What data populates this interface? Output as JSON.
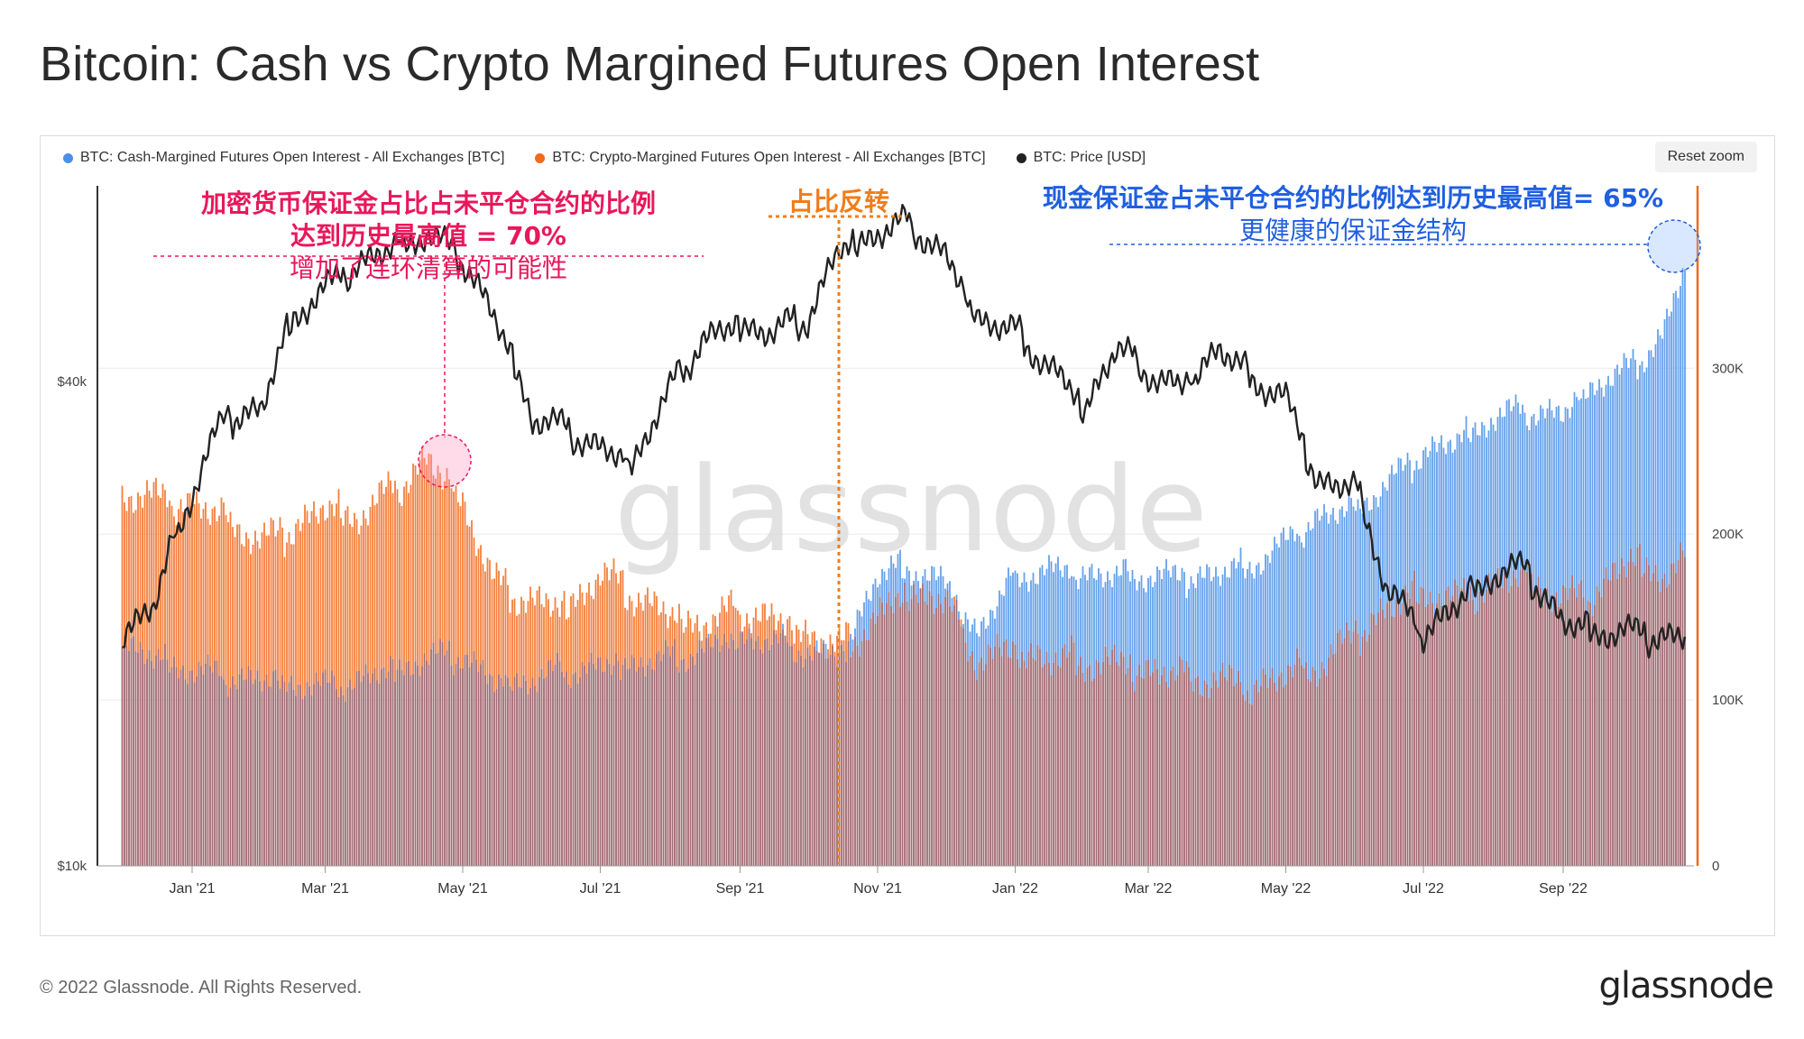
{
  "title": "Bitcoin: Cash vs Crypto Margined Futures Open Interest",
  "reset_zoom_label": "Reset zoom",
  "footer": "© 2022 Glassnode. All Rights Reserved.",
  "brand": "glassnode",
  "watermark": "glassnode",
  "colors": {
    "cash": "#4a90e8",
    "crypto": "#f26a1b",
    "overlap": "#a06a70",
    "price": "#222222",
    "pink": "#e8185c",
    "orange": "#ef7d1a",
    "blue": "#1f5fe0"
  },
  "annotations": {
    "left": {
      "line1": "加密货币保证金占比占未平仓合约的比例",
      "line2": "达到历史最高值 = 70%",
      "line3": "增加了连环清算的可能性"
    },
    "mid": {
      "line1": "占比反转"
    },
    "right": {
      "line1": "现金保证金占未平仓合约的比例达到历史最高值= 65%",
      "line2": "更健康的保证金结构"
    }
  },
  "chart_data": {
    "type": "bar",
    "title": "Bitcoin: Cash vs Crypto Margined Futures Open Interest",
    "x_tick_labels": [
      "Jan '21",
      "Mar '21",
      "May '21",
      "Jul '21",
      "Sep '21",
      "Nov '21",
      "Jan '22",
      "Mar '22",
      "May '22",
      "Jul '22",
      "Sep '22"
    ],
    "y_left": {
      "label": "",
      "scale": "log",
      "ticks": [
        "$40k",
        "$10k"
      ],
      "range": [
        10000,
        70000
      ]
    },
    "y_right": {
      "label": "",
      "ticks": [
        "0",
        "100K",
        "200K",
        "300K"
      ],
      "range": [
        0,
        410000
      ]
    },
    "x": [
      "2020-12-01",
      "2020-12-15",
      "2021-01-01",
      "2021-01-15",
      "2021-02-01",
      "2021-02-15",
      "2021-03-01",
      "2021-03-15",
      "2021-04-01",
      "2021-04-15",
      "2021-05-01",
      "2021-05-15",
      "2021-06-01",
      "2021-06-15",
      "2021-07-01",
      "2021-07-15",
      "2021-08-01",
      "2021-08-15",
      "2021-09-01",
      "2021-09-15",
      "2021-10-01",
      "2021-10-15",
      "2021-11-01",
      "2021-11-15",
      "2021-12-01",
      "2021-12-15",
      "2022-01-01",
      "2022-01-15",
      "2022-02-01",
      "2022-02-15",
      "2022-03-01",
      "2022-03-15",
      "2022-04-01",
      "2022-04-15",
      "2022-05-01",
      "2022-05-15",
      "2022-06-01",
      "2022-06-15",
      "2022-07-01",
      "2022-07-15",
      "2022-08-01",
      "2022-08-15",
      "2022-09-01",
      "2022-09-15",
      "2022-10-01",
      "2022-10-15",
      "2022-10-25"
    ],
    "series": [
      {
        "name": "BTC: Cash-Margined Futures Open Interest - All Exchanges [BTC]",
        "axis": "right",
        "values": [
          135000,
          125000,
          118000,
          115000,
          112000,
          110000,
          108000,
          112000,
          118000,
          125000,
          128000,
          110000,
          112000,
          118000,
          120000,
          122000,
          125000,
          130000,
          138000,
          135000,
          130000,
          125000,
          175000,
          180000,
          170000,
          140000,
          175000,
          178000,
          176000,
          174000,
          175000,
          174000,
          176000,
          180000,
          195000,
          210000,
          215000,
          230000,
          250000,
          255000,
          270000,
          275000,
          272000,
          290000,
          300000,
          320000,
          360000
        ]
      },
      {
        "name": "BTC: Crypto-Margined Futures Open Interest - All Exchanges [BTC]",
        "axis": "right",
        "values": [
          225000,
          222000,
          218000,
          210000,
          195000,
          205000,
          215000,
          210000,
          228000,
          245000,
          220000,
          170000,
          160000,
          155000,
          175000,
          165000,
          150000,
          145000,
          155000,
          148000,
          140000,
          130000,
          150000,
          165000,
          160000,
          125000,
          130000,
          125000,
          123000,
          122000,
          118000,
          115000,
          112000,
          108000,
          115000,
          120000,
          140000,
          155000,
          165000,
          160000,
          170000,
          175000,
          160000,
          165000,
          185000,
          175000,
          185000
        ]
      },
      {
        "name": "BTC: Price [USD]",
        "axis": "left",
        "values": [
          19500,
          21000,
          29000,
          36000,
          37000,
          48000,
          52000,
          56000,
          58500,
          61000,
          57000,
          48000,
          36000,
          35000,
          33000,
          31500,
          39000,
          45000,
          47000,
          46000,
          48000,
          58000,
          61000,
          63000,
          57000,
          48000,
          46000,
          42000,
          37000,
          44000,
          41000,
          39000,
          44000,
          40500,
          38000,
          30000,
          29500,
          22000,
          19500,
          21000,
          23000,
          23500,
          20000,
          19500,
          19500,
          19300,
          19200
        ]
      }
    ]
  }
}
